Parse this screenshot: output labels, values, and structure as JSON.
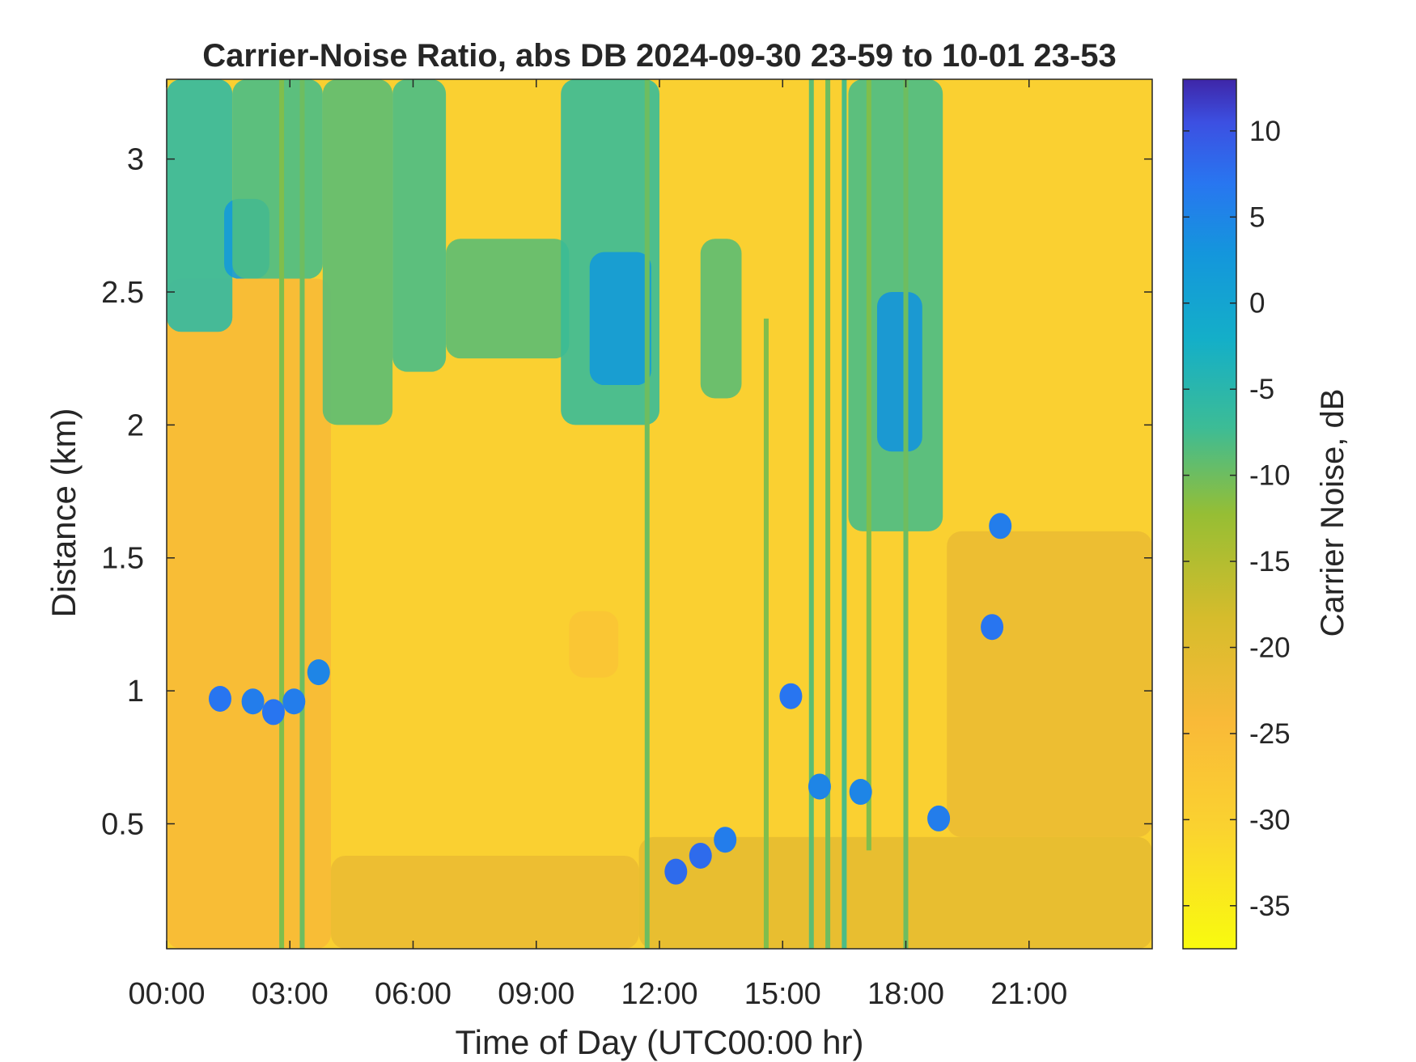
{
  "chart_data": {
    "type": "heatmap",
    "title": "Carrier-Noise Ratio, abs DB 2024-09-30 23-59 to 10-01 23-53",
    "xlabel": "Time of Day (UTC00:00 hr)",
    "ylabel": "Distance (km)",
    "colorbar_label": "Carrier Noise, dB",
    "x_unit": "hours",
    "xlim": [
      0,
      24
    ],
    "ylim": [
      0.03,
      3.3
    ],
    "clim": [
      -37.5,
      13
    ],
    "x_ticks": [
      {
        "value": 0,
        "label": "00:00"
      },
      {
        "value": 3,
        "label": "03:00"
      },
      {
        "value": 6,
        "label": "06:00"
      },
      {
        "value": 9,
        "label": "09:00"
      },
      {
        "value": 12,
        "label": "12:00"
      },
      {
        "value": 15,
        "label": "15:00"
      },
      {
        "value": 18,
        "label": "18:00"
      },
      {
        "value": 21,
        "label": "21:00"
      }
    ],
    "y_ticks": [
      {
        "value": 0.5,
        "label": "0.5"
      },
      {
        "value": 1,
        "label": "1"
      },
      {
        "value": 1.5,
        "label": "1.5"
      },
      {
        "value": 2,
        "label": "2"
      },
      {
        "value": 2.5,
        "label": "2.5"
      },
      {
        "value": 3,
        "label": "3"
      }
    ],
    "colorbar_ticks": [
      {
        "value": 10,
        "label": "10"
      },
      {
        "value": 5,
        "label": "5"
      },
      {
        "value": 0,
        "label": "0"
      },
      {
        "value": -5,
        "label": "-5"
      },
      {
        "value": -10,
        "label": "-10"
      },
      {
        "value": -15,
        "label": "-15"
      },
      {
        "value": -20,
        "label": "-20"
      },
      {
        "value": -25,
        "label": "-25"
      },
      {
        "value": -30,
        "label": "-30"
      },
      {
        "value": -35,
        "label": "-35"
      }
    ],
    "colormap": "parula",
    "background_value_db": -30,
    "regions": [
      {
        "t0": 0,
        "t1": 4.0,
        "d0": 0.03,
        "d1": 2.55,
        "value": -24
      },
      {
        "t0": 0,
        "t1": 1.6,
        "d0": 2.35,
        "d1": 3.3,
        "value": -6
      },
      {
        "t0": 1.4,
        "t1": 2.5,
        "d0": 2.55,
        "d1": 2.85,
        "value": 2
      },
      {
        "t0": 1.6,
        "t1": 3.8,
        "d0": 2.55,
        "d1": 3.3,
        "value": -8
      },
      {
        "t0": 3.8,
        "t1": 5.5,
        "d0": 2.0,
        "d1": 3.3,
        "value": -9
      },
      {
        "t0": 5.5,
        "t1": 6.8,
        "d0": 2.2,
        "d1": 3.3,
        "value": -8
      },
      {
        "t0": 6.8,
        "t1": 9.8,
        "d0": 2.25,
        "d1": 2.7,
        "value": -9
      },
      {
        "t0": 9.6,
        "t1": 12.0,
        "d0": 2.0,
        "d1": 3.3,
        "value": -7
      },
      {
        "t0": 10.3,
        "t1": 11.8,
        "d0": 2.15,
        "d1": 2.65,
        "value": 2
      },
      {
        "t0": 13.0,
        "t1": 14.0,
        "d0": 2.1,
        "d1": 2.7,
        "value": -9
      },
      {
        "t0": 16.6,
        "t1": 18.9,
        "d0": 1.6,
        "d1": 3.3,
        "value": -8
      },
      {
        "t0": 17.3,
        "t1": 18.4,
        "d0": 1.9,
        "d1": 2.5,
        "value": 3
      },
      {
        "t0": 4.0,
        "t1": 11.5,
        "d0": 0.03,
        "d1": 0.38,
        "value": -22
      },
      {
        "t0": 11.5,
        "t1": 24.0,
        "d0": 0.03,
        "d1": 0.45,
        "value": -21
      },
      {
        "t0": 19.0,
        "t1": 24.0,
        "d0": 0.45,
        "d1": 1.6,
        "value": -22
      },
      {
        "t0": 9.8,
        "t1": 11.0,
        "d0": 1.05,
        "d1": 1.3,
        "value": -27
      }
    ],
    "streaks": [
      {
        "t": 2.8,
        "d0": 0.03,
        "d1": 3.3,
        "value": -11
      },
      {
        "t": 3.3,
        "d0": 0.03,
        "d1": 3.3,
        "value": -10
      },
      {
        "t": 11.7,
        "d0": 0.03,
        "d1": 3.3,
        "value": -10
      },
      {
        "t": 14.6,
        "d0": 0.03,
        "d1": 2.4,
        "value": -11
      },
      {
        "t": 15.7,
        "d0": 0.03,
        "d1": 3.3,
        "value": -9
      },
      {
        "t": 16.1,
        "d0": 0.03,
        "d1": 3.3,
        "value": -10
      },
      {
        "t": 16.5,
        "d0": 0.03,
        "d1": 3.3,
        "value": -8
      },
      {
        "t": 17.1,
        "d0": 0.4,
        "d1": 3.3,
        "value": -11
      },
      {
        "t": 18.0,
        "d0": 0.03,
        "d1": 3.3,
        "value": -10
      }
    ],
    "blobs": [
      {
        "t": 1.3,
        "d": 0.97,
        "value": 7
      },
      {
        "t": 2.1,
        "d": 0.96,
        "value": 6
      },
      {
        "t": 2.6,
        "d": 0.92,
        "value": 7
      },
      {
        "t": 3.1,
        "d": 0.96,
        "value": 6
      },
      {
        "t": 3.7,
        "d": 1.07,
        "value": 5
      },
      {
        "t": 12.4,
        "d": 0.32,
        "value": 8
      },
      {
        "t": 13.0,
        "d": 0.38,
        "value": 8
      },
      {
        "t": 13.6,
        "d": 0.44,
        "value": 6
      },
      {
        "t": 15.2,
        "d": 0.98,
        "value": 7
      },
      {
        "t": 15.9,
        "d": 0.64,
        "value": 5
      },
      {
        "t": 16.9,
        "d": 0.62,
        "value": 5
      },
      {
        "t": 18.8,
        "d": 0.52,
        "value": 6
      },
      {
        "t": 20.1,
        "d": 1.24,
        "value": 7
      },
      {
        "t": 20.3,
        "d": 1.62,
        "value": 6
      }
    ]
  }
}
